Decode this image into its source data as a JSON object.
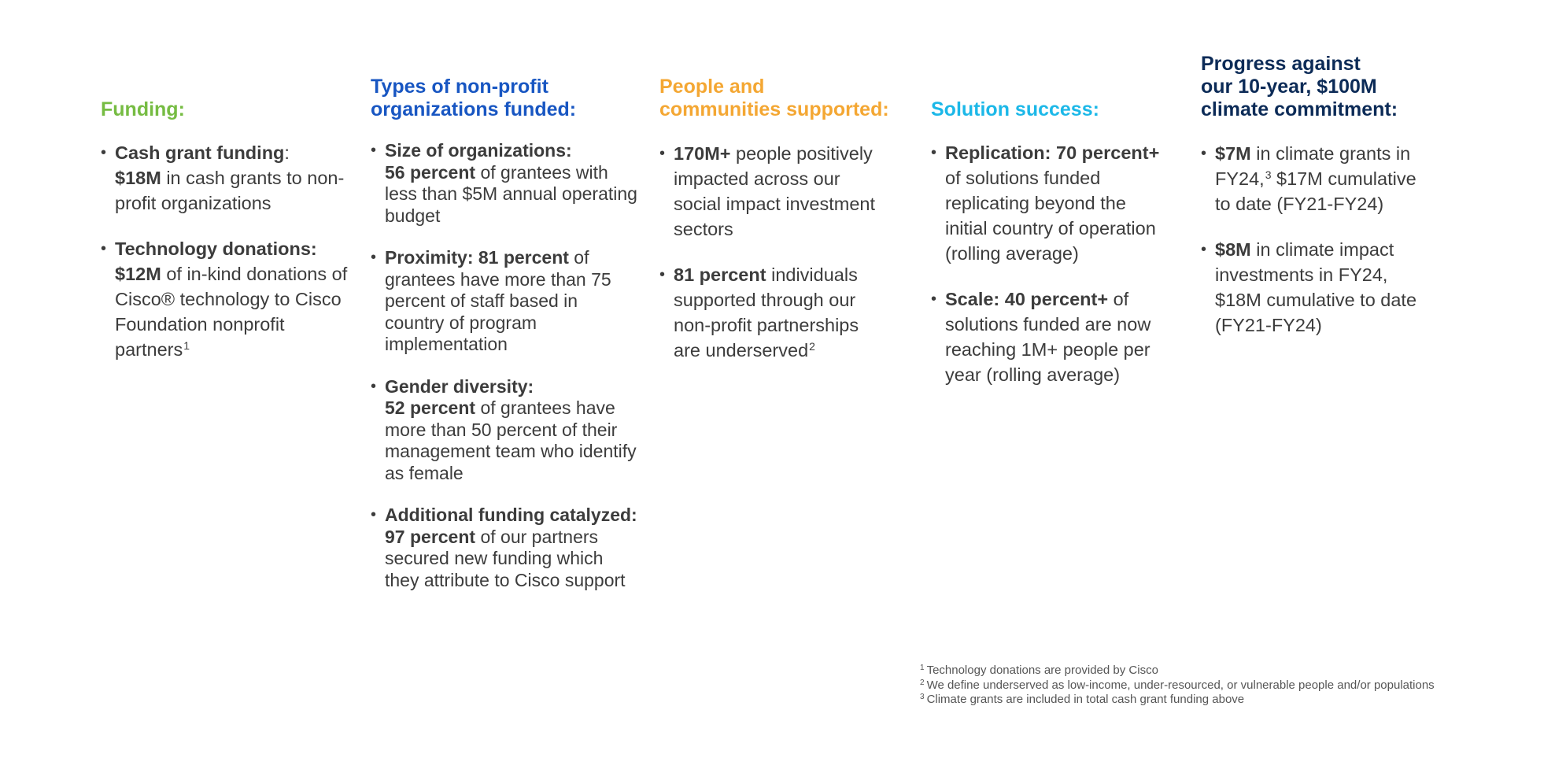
{
  "colors": {
    "funding": "#76bc43",
    "types": "#1856c2",
    "people": "#f4a733",
    "solution": "#1cb8e8",
    "progress": "#0c2b57",
    "body_text": "#3c3c3c"
  },
  "funding": {
    "title": "Funding:",
    "items": [
      {
        "bold": "Cash grant funding",
        "after_bold": ":",
        "amount": "$18M",
        "rest": " in cash grants to non-profit organizations"
      },
      {
        "bold": "Technology donations:",
        "amount": "$12M",
        "rest": " of in-kind donations of Cisco® technology to Cisco Foundation nonprofit partners",
        "sup": "1"
      }
    ]
  },
  "types": {
    "title_line1": "Types of non-profit",
    "title_line2": "organizations funded:",
    "items": [
      {
        "bold1": "Size of organizations:",
        "bold2": "56 percent",
        "rest": " of grantees with less than $5M annual operating budget"
      },
      {
        "bold": "Proximity: 81 percent",
        "rest": " of grantees have more than 75 percent of staff based in country of program implementation"
      },
      {
        "bold1": "Gender diversity:",
        "bold2": "52 percent",
        "rest": " of grantees have more than 50 percent of their management team who identify as female"
      },
      {
        "bold": "Additional funding catalyzed: 97 percent",
        "rest": " of our partners secured new funding which they attribute to Cisco support"
      }
    ]
  },
  "people": {
    "title_line1": "People and",
    "title_line2": "communities supported:",
    "items": [
      {
        "bold": "170M+",
        "rest": " people positively impacted across our social impact investment sectors"
      },
      {
        "bold": "81 percent",
        "rest": " individuals supported through our non-profit partnerships are underserved",
        "sup": "2"
      }
    ]
  },
  "solution": {
    "title": "Solution success:",
    "items": [
      {
        "bold": "Replication: 70 percent+",
        "rest": " of solutions funded replicating beyond the initial country of operation (rolling average)"
      },
      {
        "bold": "Scale: 40 percent+",
        "rest": " of solutions funded are now reaching 1M+ people per year (rolling average)"
      }
    ]
  },
  "progress": {
    "title_line1": "Progress against",
    "title_line2": "our 10-year, $100M",
    "title_line3": "climate commitment:",
    "items": [
      {
        "bold": "$7M",
        "rest_a": " in climate grants in FY24,",
        "sup": "3",
        "rest_b": " $17M cumulative to date (FY21-FY24)"
      },
      {
        "bold": "$8M",
        "rest": " in climate impact investments in FY24, $18M cumulative to date (FY21-FY24)"
      }
    ]
  },
  "footnotes": [
    {
      "num": "1",
      "text": "Technology donations are provided by Cisco"
    },
    {
      "num": "2",
      "text": "We define underserved as low-income, under-resourced, or vulnerable people and/or populations"
    },
    {
      "num": "3",
      "text": "Climate grants are included in total cash grant funding above"
    }
  ]
}
